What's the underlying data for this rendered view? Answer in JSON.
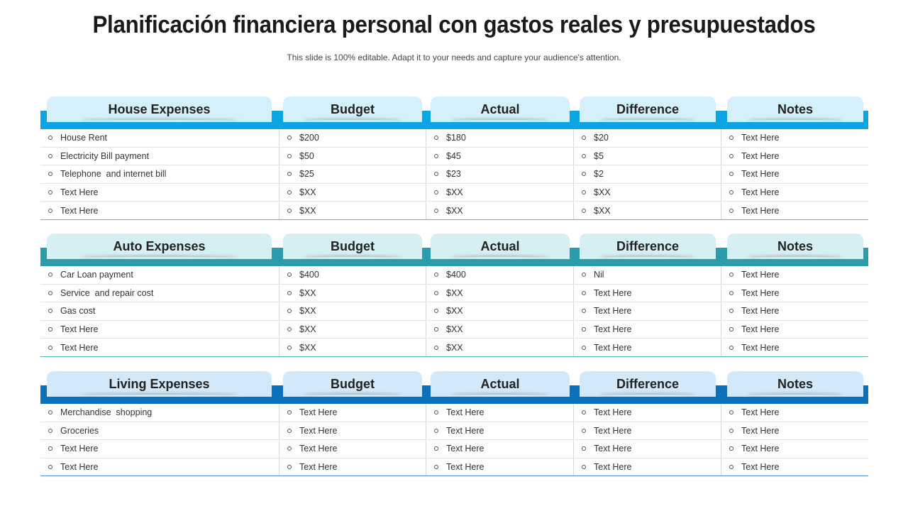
{
  "title": "Planificación financiera personal con gastos reales y presupuestados",
  "subtitle": "This slide is 100% editable. Adapt it to your needs and capture your audience's attention.",
  "sections": [
    {
      "headers": [
        "House Expenses",
        "Budget",
        "Actual",
        "Difference",
        "Notes"
      ],
      "rows": [
        [
          "House Rent",
          "$200",
          "$180",
          "$20",
          "Text Here"
        ],
        [
          "Electricity Bill payment",
          "$50",
          "$45",
          "$5",
          "Text Here"
        ],
        [
          "Telephone  and internet bill",
          "$25",
          "$23",
          "$2",
          "Text Here"
        ],
        [
          "Text Here",
          "$XX",
          "$XX",
          "$XX",
          "Text Here"
        ],
        [
          "Text Here",
          "$XX",
          "$XX",
          "$XX",
          "Text Here"
        ]
      ]
    },
    {
      "headers": [
        "Auto Expenses",
        "Budget",
        "Actual",
        "Difference",
        "Notes"
      ],
      "rows": [
        [
          "Car Loan payment",
          "$400",
          "$400",
          "Nil",
          "Text Here"
        ],
        [
          "Service  and repair cost",
          "$XX",
          "$XX",
          "Text Here",
          "Text Here"
        ],
        [
          "Gas cost",
          "$XX",
          "$XX",
          "Text Here",
          "Text Here"
        ],
        [
          "Text Here",
          "$XX",
          "$XX",
          "Text Here",
          "Text Here"
        ],
        [
          "Text Here",
          "$XX",
          "$XX",
          "Text Here",
          "Text Here"
        ]
      ]
    },
    {
      "headers": [
        "Living Expenses",
        "Budget",
        "Actual",
        "Difference",
        "Notes"
      ],
      "rows": [
        [
          "Merchandise  shopping",
          "Text Here",
          "Text Here",
          "Text Here",
          "Text Here"
        ],
        [
          "Groceries",
          "Text Here",
          "Text Here",
          "Text Here",
          "Text Here"
        ],
        [
          "Text Here",
          "Text Here",
          "Text Here",
          "Text Here",
          "Text Here"
        ],
        [
          "Text Here",
          "Text Here",
          "Text Here",
          "Text Here",
          "Text Here"
        ]
      ]
    }
  ]
}
